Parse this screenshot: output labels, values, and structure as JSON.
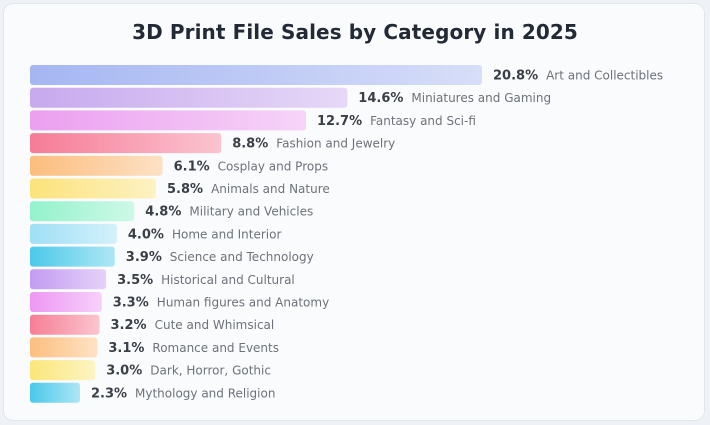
{
  "chart_data": {
    "type": "bar",
    "orientation": "horizontal",
    "title": "3D Print File Sales by Category in 2025",
    "value_suffix": "%",
    "categories": [
      "Art and Collectibles",
      "Miniatures and Gaming",
      "Fantasy and Sci-fi",
      "Fashion and Jewelry",
      "Cosplay and Props",
      "Animals and Nature",
      "Military and Vehicles",
      "Home and Interior",
      "Science and Technology",
      "Historical and Cultural",
      "Human figures and Anatomy",
      "Cute and Whimsical",
      "Romance and Events",
      "Dark, Horror, Gothic",
      "Mythology and Religion"
    ],
    "values": [
      20.8,
      14.6,
      12.7,
      8.8,
      6.1,
      5.8,
      4.8,
      4.0,
      3.9,
      3.5,
      3.3,
      3.2,
      3.1,
      3.0,
      2.3
    ],
    "value_labels": [
      "20.8%",
      "14.6%",
      "12.7%",
      "8.8%",
      "6.1%",
      "5.8%",
      "4.8%",
      "4.0%",
      "3.9%",
      "3.5%",
      "3.3%",
      "3.2%",
      "3.1%",
      "3.0%",
      "2.3%"
    ],
    "colors": [
      "#a5b6f2",
      "#c7a9ee",
      "#eb9ff0",
      "#f67b96",
      "#fbbd7d",
      "#fbe27a",
      "#93f2cc",
      "#9fdff5",
      "#4cc9e9",
      "#c49bf2",
      "#ee97f3",
      "#f67e95",
      "#fcbf7e",
      "#fbe67a",
      "#49c8ea"
    ],
    "xlim": [
      0,
      20.8
    ],
    "grid": false,
    "legend": "none"
  }
}
